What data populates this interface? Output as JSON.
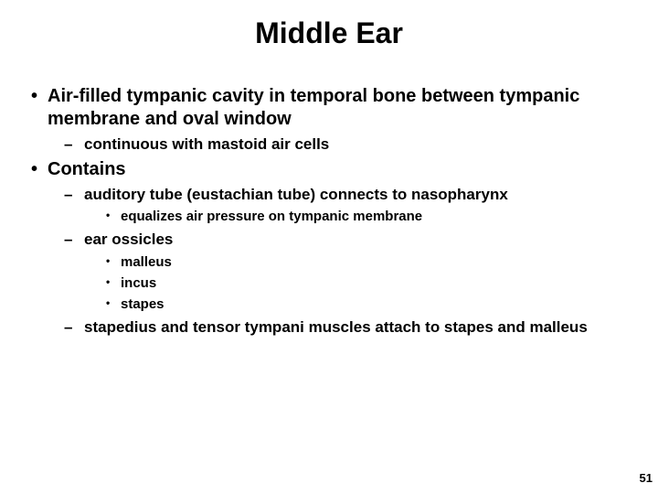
{
  "title": "Middle Ear",
  "bullets": {
    "b0": "Air-filled tympanic cavity in temporal bone between tympanic membrane and oval window",
    "b0_0": "continuous with mastoid air cells",
    "b1": "Contains",
    "b1_0": "auditory tube (eustachian tube) connects to nasopharynx",
    "b1_0_0": "equalizes air pressure on tympanic membrane",
    "b1_1": "ear ossicles",
    "b1_1_0": "malleus",
    "b1_1_1": "incus",
    "b1_1_2": "stapes",
    "b1_2": "stapedius and tensor tympani muscles attach to stapes and malleus"
  },
  "page_number": "51"
}
